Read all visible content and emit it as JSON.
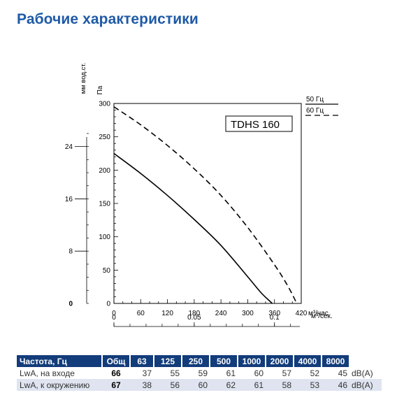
{
  "page_title": "Рабочие характеристики",
  "chart_data": {
    "type": "line",
    "model_label": "TDHS 160",
    "y_axis": {
      "label": "Па",
      "min": 0,
      "max": 300,
      "ticks": [
        0,
        50,
        100,
        150,
        200,
        250,
        300
      ]
    },
    "y2_axis": {
      "label": "мм вод.ст.",
      "ticks": [
        0,
        8,
        16,
        24
      ]
    },
    "x_axis": {
      "label": "м³/час",
      "min": 0,
      "max": 420,
      "ticks": [
        0,
        60,
        120,
        180,
        240,
        300,
        360,
        420
      ]
    },
    "x2_axis": {
      "label": "м³/сек.",
      "ticks": [
        0,
        0.05,
        0.1
      ]
    },
    "grid": false,
    "legend_position": "right",
    "series": [
      {
        "name": "50 Гц",
        "style": "solid",
        "x": [
          0,
          60,
          120,
          180,
          240,
          300,
          330,
          355
        ],
        "y": [
          225,
          195,
          162,
          126,
          87,
          40,
          16,
          0
        ]
      },
      {
        "name": "60 Гц",
        "style": "dashed",
        "x": [
          0,
          60,
          120,
          180,
          240,
          300,
          360,
          390,
          410
        ],
        "y": [
          295,
          268,
          237,
          202,
          162,
          114,
          58,
          26,
          0
        ]
      }
    ]
  },
  "table": {
    "header": [
      "Частота, Гц",
      "Общ",
      "63",
      "125",
      "250",
      "500",
      "1000",
      "2000",
      "4000",
      "8000",
      ""
    ],
    "rows": [
      {
        "label": "LwA, на входе",
        "total": "66",
        "values": [
          "37",
          "55",
          "59",
          "61",
          "60",
          "57",
          "52",
          "45"
        ],
        "unit": "dB(A)"
      },
      {
        "label": "LwA, к окружению",
        "total": "67",
        "values": [
          "38",
          "56",
          "60",
          "62",
          "61",
          "58",
          "53",
          "46"
        ],
        "unit": "dB(A)"
      }
    ]
  }
}
